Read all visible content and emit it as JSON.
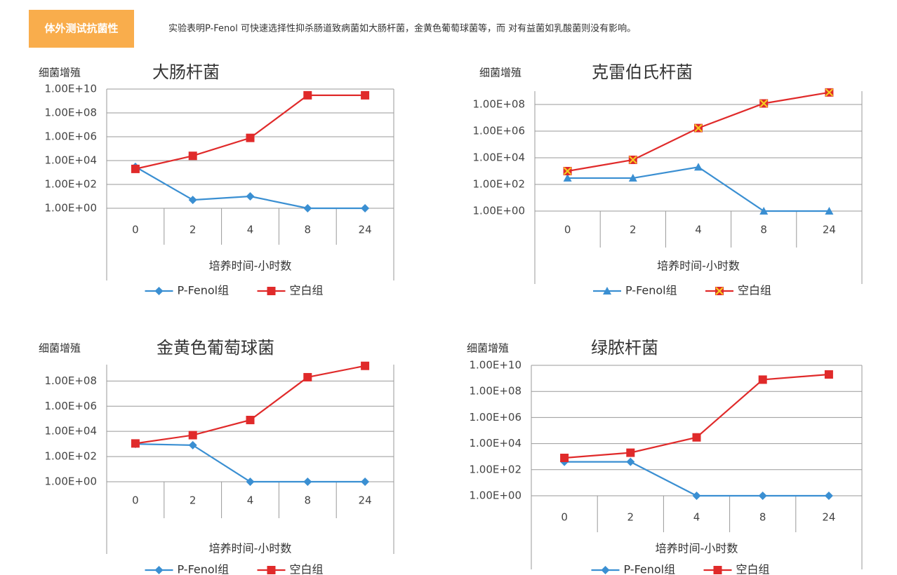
{
  "header": {
    "badge": "体外测试抗菌性",
    "description": "实验表明P-Fenol 可快速选择性抑杀肠道致病菌如大肠杆菌，金黄色葡萄球菌等，而 对有益菌如乳酸菌则没有影响。"
  },
  "chart_data": [
    {
      "type": "line",
      "title": "大肠杆菌",
      "y_label": "细菌增殖",
      "x_label": "培养时间-小时数",
      "log_y": true,
      "grid": true,
      "legend": "bottom",
      "categories": [
        "0",
        "2",
        "4",
        "8",
        "24"
      ],
      "ylim": [
        1,
        10000000000
      ],
      "yticks": [
        {
          "value": 1,
          "label": "1.00E+00"
        },
        {
          "value": 100,
          "label": "1.00E+02"
        },
        {
          "value": 10000,
          "label": "1.00E+04"
        },
        {
          "value": 1000000,
          "label": "1.00E+06"
        },
        {
          "value": 100000000,
          "label": "1.00E+08"
        },
        {
          "value": 10000000000,
          "label": "1.00E+10"
        }
      ],
      "series": [
        {
          "name": "P-Fenol组",
          "color": "#3a8fd2",
          "marker": "diamond",
          "values": [
            3000,
            5,
            10,
            1,
            1
          ]
        },
        {
          "name": "空白组",
          "color": "#e02a2a",
          "marker": "square",
          "values": [
            2000,
            25000,
            800000,
            3000000000,
            3000000000
          ]
        }
      ]
    },
    {
      "type": "line",
      "title": "克雷伯氏杆菌",
      "y_label": "细菌增殖",
      "x_label": "培养时间-小时数",
      "log_y": true,
      "grid": true,
      "legend": "bottom",
      "categories": [
        "0",
        "2",
        "4",
        "8",
        "24"
      ],
      "ylim": [
        1,
        1000000000
      ],
      "yticks": [
        {
          "value": 1,
          "label": "1.00E+00"
        },
        {
          "value": 100,
          "label": "1.00E+02"
        },
        {
          "value": 10000,
          "label": "1.00E+04"
        },
        {
          "value": 1000000,
          "label": "1.00E+06"
        },
        {
          "value": 100000000,
          "label": "1.00E+08"
        }
      ],
      "series": [
        {
          "name": "P-Fenol组",
          "color": "#3a8fd2",
          "marker": "triangle",
          "values": [
            300,
            300,
            2000,
            1,
            1
          ]
        },
        {
          "name": "空白组",
          "color": "#e02a2a",
          "marker": "square-x",
          "values": [
            1000,
            7000,
            1700000,
            120000000,
            800000000
          ]
        }
      ]
    },
    {
      "type": "line",
      "title": "金黄色葡萄球菌",
      "y_label": "细菌增殖",
      "x_label": "培养时间-小时数",
      "log_y": true,
      "grid": true,
      "legend": "bottom",
      "categories": [
        "0",
        "2",
        "4",
        "8",
        "24"
      ],
      "ylim": [
        1,
        2000000000
      ],
      "yticks": [
        {
          "value": 1,
          "label": "1.00E+00"
        },
        {
          "value": 100,
          "label": "1.00E+02"
        },
        {
          "value": 10000,
          "label": "1.00E+04"
        },
        {
          "value": 1000000,
          "label": "1.00E+06"
        },
        {
          "value": 100000000,
          "label": "1.00E+08"
        }
      ],
      "series": [
        {
          "name": "P-Fenol组",
          "color": "#3a8fd2",
          "marker": "diamond",
          "values": [
            1000,
            800,
            1,
            1,
            1
          ]
        },
        {
          "name": "空白组",
          "color": "#e02a2a",
          "marker": "square",
          "values": [
            1100,
            5000,
            80000,
            200000000,
            1600000000
          ]
        }
      ]
    },
    {
      "type": "line",
      "title": "绿脓杆菌",
      "y_label": "细菌增殖",
      "x_label": "培养时间-小时数",
      "log_y": true,
      "grid": true,
      "legend": "bottom",
      "categories": [
        "0",
        "2",
        "4",
        "8",
        "24"
      ],
      "ylim": [
        1,
        10000000000
      ],
      "yticks": [
        {
          "value": 1,
          "label": "1.00E+00"
        },
        {
          "value": 100,
          "label": "1.00E+02"
        },
        {
          "value": 10000,
          "label": "1.00E+04"
        },
        {
          "value": 1000000,
          "label": "1.00E+06"
        },
        {
          "value": 100000000,
          "label": "1.00E+08"
        },
        {
          "value": 10000000000,
          "label": "1.00E+10"
        }
      ],
      "series": [
        {
          "name": "P-Fenol组",
          "color": "#3a8fd2",
          "marker": "diamond",
          "values": [
            400,
            400,
            1,
            1,
            1
          ]
        },
        {
          "name": "空白组",
          "color": "#e02a2a",
          "marker": "square",
          "values": [
            800,
            2000,
            30000,
            800000000,
            2000000000
          ]
        }
      ]
    }
  ]
}
